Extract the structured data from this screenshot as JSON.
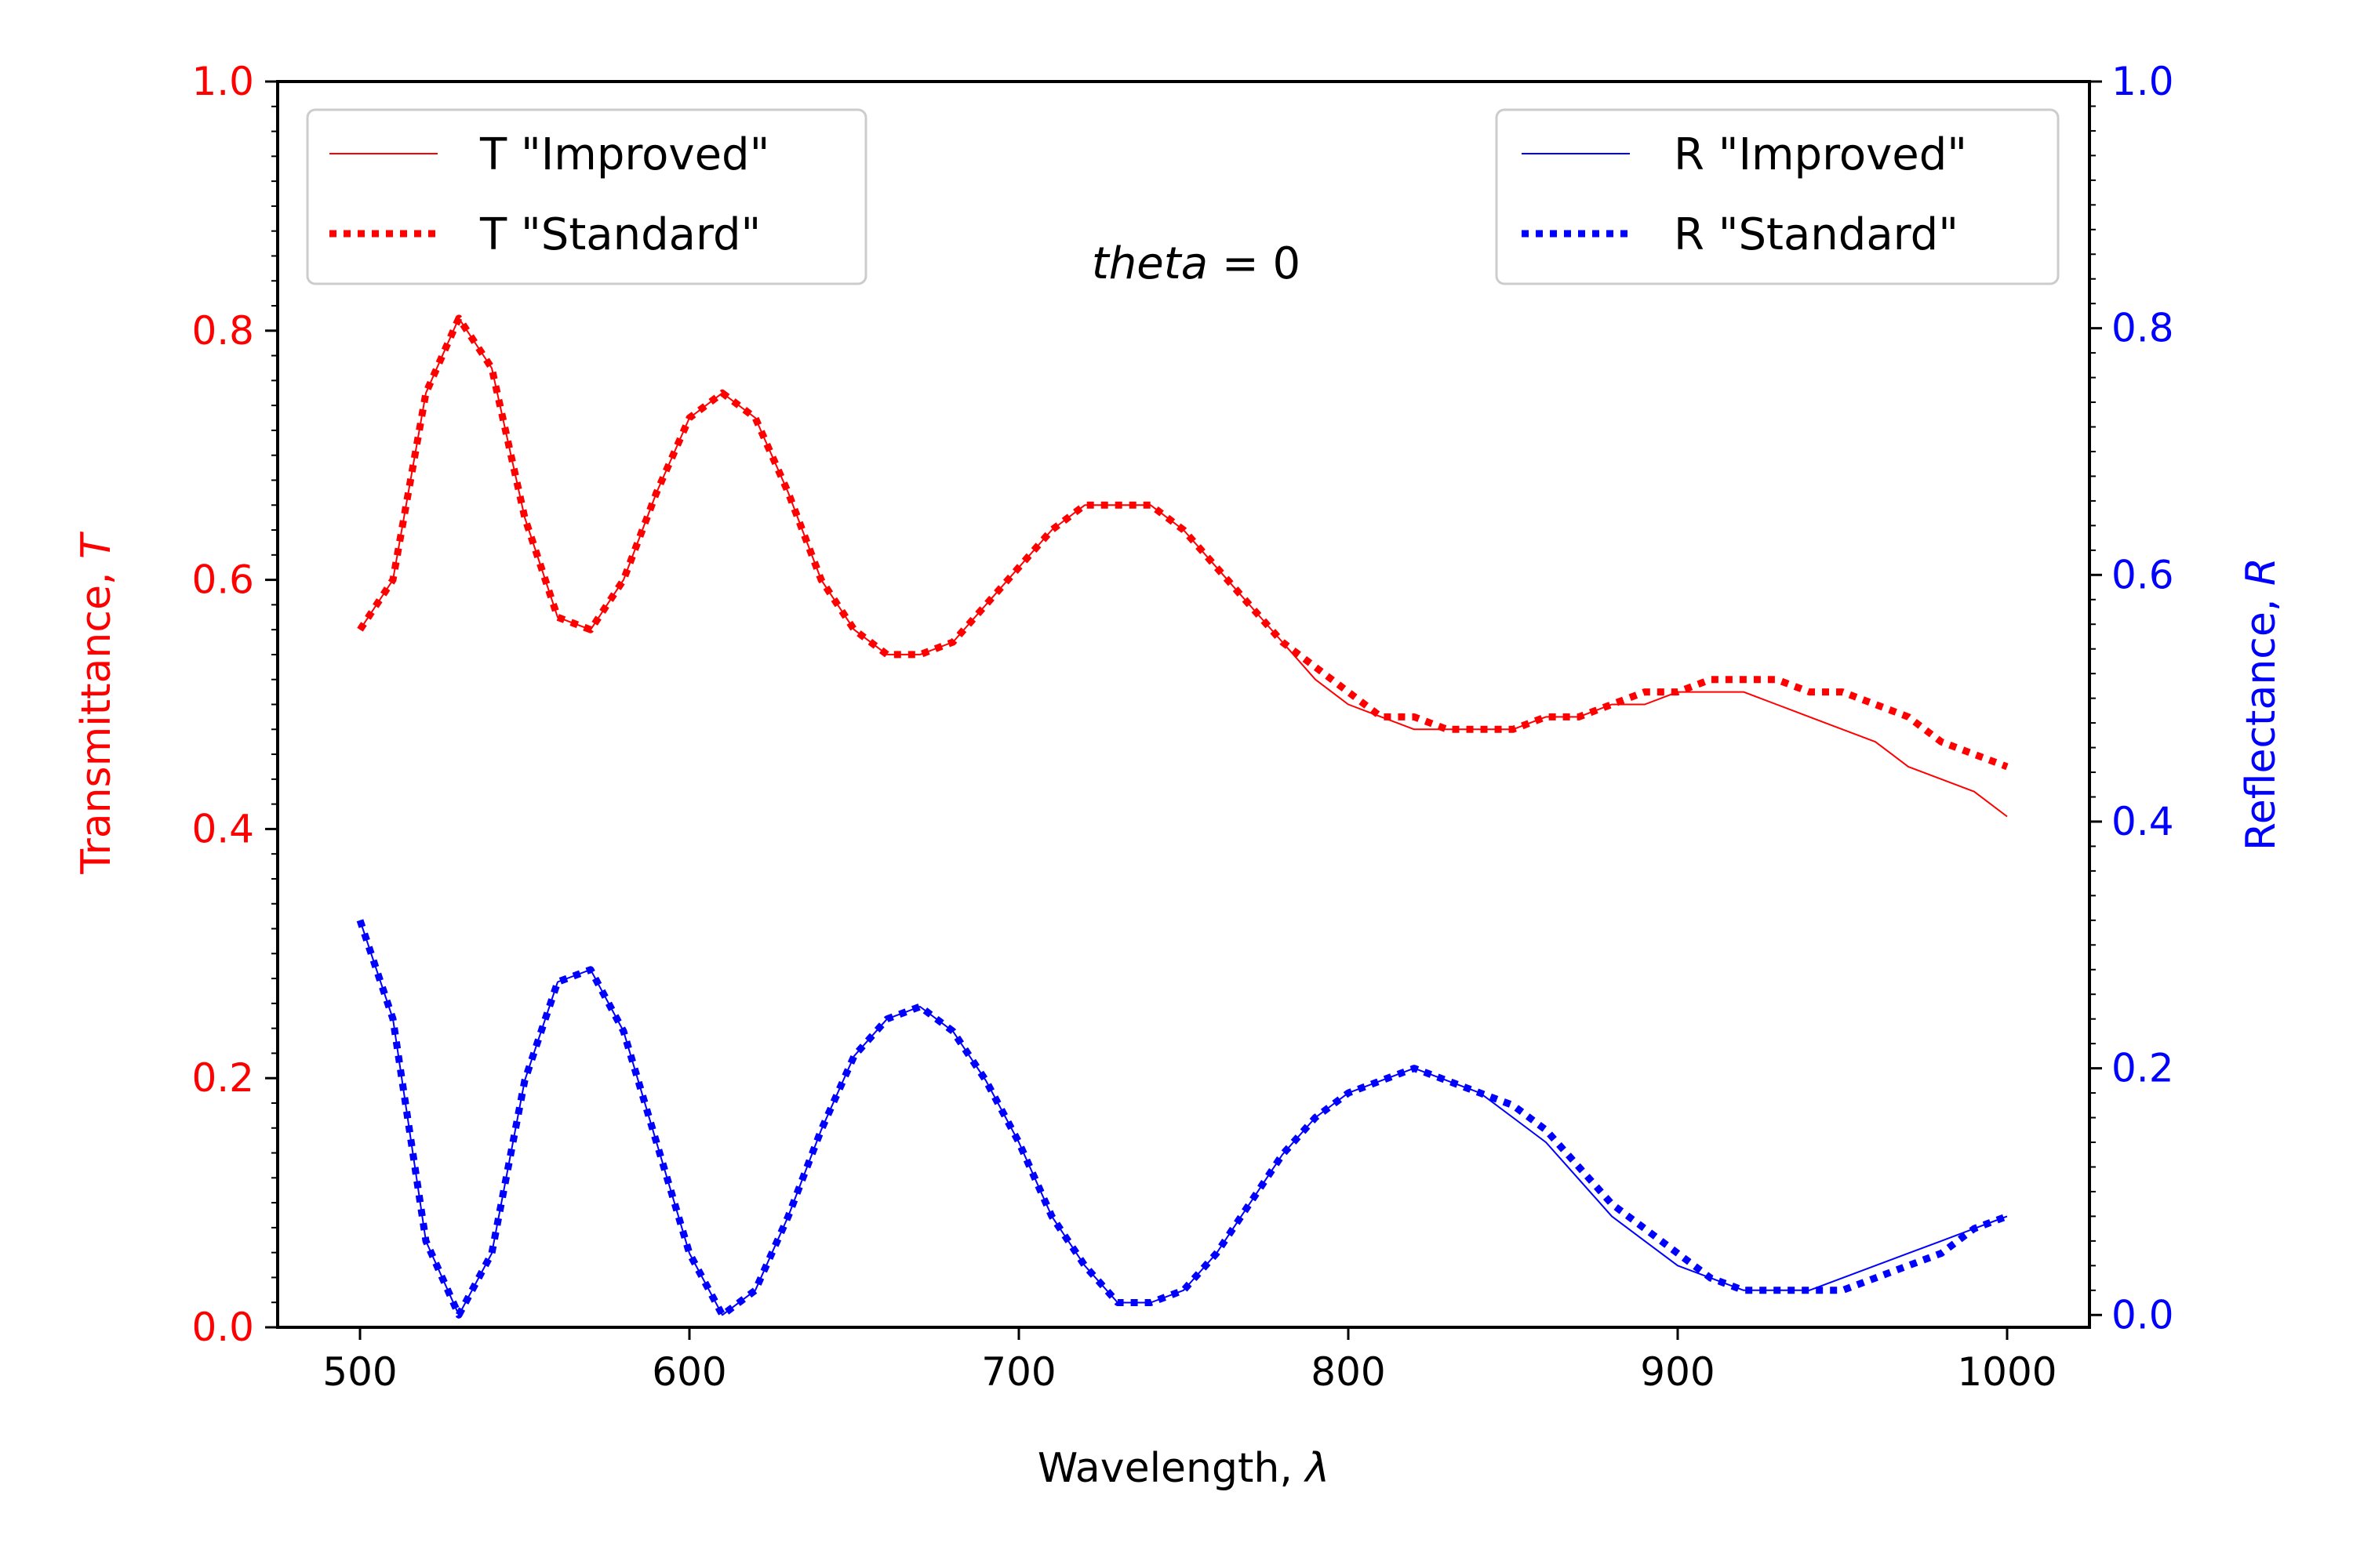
{
  "chart_data": {
    "type": "line",
    "annotation_var": "theta",
    "annotation_rest": " = 0",
    "xlabel_text": "Wavelength, ",
    "xlabel_sym": "λ",
    "ylabel_left_text": "Transmittance, ",
    "ylabel_left_sym": "T",
    "ylabel_right_text": "Reflectance, ",
    "ylabel_right_sym": "R",
    "xlim": [
      475,
      1025
    ],
    "ylim_left": [
      0.0,
      1.0
    ],
    "ylim_right": [
      -0.01,
      1.0
    ],
    "x_ticks": [
      500,
      600,
      700,
      800,
      900,
      1000
    ],
    "x_tick_labels": [
      "500",
      "600",
      "700",
      "800",
      "900",
      "1000"
    ],
    "y_left_ticks": [
      0.0,
      0.2,
      0.4,
      0.6,
      0.8,
      1.0
    ],
    "y_left_tick_labels": [
      "0.0",
      "0.2",
      "0.4",
      "0.6",
      "0.8",
      "1.0"
    ],
    "y_right_ticks": [
      0.0,
      0.2,
      0.4,
      0.6,
      0.8,
      1.0
    ],
    "y_right_tick_labels": [
      "0.0",
      "0.2",
      "0.4",
      "0.6",
      "0.8",
      "1.0"
    ],
    "grid": false,
    "legends": [
      {
        "placement": "top-left",
        "entries": [
          "T \"Improved\"",
          "T \"Standard\""
        ]
      },
      {
        "placement": "top-right",
        "entries": [
          "R \"Improved\"",
          "R \"Standard\""
        ]
      }
    ],
    "colors": {
      "left_axis": "#ff0000",
      "right_axis": "#0000ff",
      "frame": "#000000"
    },
    "series": [
      {
        "name": "T \"Improved\"",
        "axis": "left",
        "color": "#ff0000",
        "style": "solid",
        "points": [
          [
            500,
            0.56
          ],
          [
            510,
            0.6
          ],
          [
            520,
            0.75
          ],
          [
            530,
            0.81
          ],
          [
            540,
            0.77
          ],
          [
            550,
            0.65
          ],
          [
            560,
            0.57
          ],
          [
            570,
            0.56
          ],
          [
            580,
            0.6
          ],
          [
            590,
            0.67
          ],
          [
            600,
            0.73
          ],
          [
            610,
            0.75
          ],
          [
            620,
            0.73
          ],
          [
            630,
            0.67
          ],
          [
            640,
            0.6
          ],
          [
            650,
            0.56
          ],
          [
            660,
            0.54
          ],
          [
            670,
            0.54
          ],
          [
            680,
            0.55
          ],
          [
            690,
            0.58
          ],
          [
            700,
            0.61
          ],
          [
            710,
            0.64
          ],
          [
            720,
            0.66
          ],
          [
            730,
            0.66
          ],
          [
            740,
            0.66
          ],
          [
            750,
            0.64
          ],
          [
            760,
            0.61
          ],
          [
            770,
            0.58
          ],
          [
            780,
            0.55
          ],
          [
            790,
            0.52
          ],
          [
            800,
            0.5
          ],
          [
            810,
            0.49
          ],
          [
            820,
            0.48
          ],
          [
            830,
            0.48
          ],
          [
            840,
            0.48
          ],
          [
            850,
            0.48
          ],
          [
            860,
            0.49
          ],
          [
            870,
            0.49
          ],
          [
            880,
            0.5
          ],
          [
            890,
            0.5
          ],
          [
            900,
            0.51
          ],
          [
            910,
            0.51
          ],
          [
            920,
            0.51
          ],
          [
            930,
            0.5
          ],
          [
            940,
            0.49
          ],
          [
            950,
            0.48
          ],
          [
            960,
            0.47
          ],
          [
            970,
            0.45
          ],
          [
            980,
            0.44
          ],
          [
            990,
            0.43
          ],
          [
            1000,
            0.41
          ]
        ]
      },
      {
        "name": "T \"Standard\"",
        "axis": "left",
        "color": "#ff0000",
        "style": "dotted",
        "points": [
          [
            500,
            0.56
          ],
          [
            510,
            0.6
          ],
          [
            520,
            0.75
          ],
          [
            530,
            0.81
          ],
          [
            540,
            0.77
          ],
          [
            550,
            0.65
          ],
          [
            560,
            0.57
          ],
          [
            570,
            0.56
          ],
          [
            580,
            0.6
          ],
          [
            590,
            0.67
          ],
          [
            600,
            0.73
          ],
          [
            610,
            0.75
          ],
          [
            620,
            0.73
          ],
          [
            630,
            0.67
          ],
          [
            640,
            0.6
          ],
          [
            650,
            0.56
          ],
          [
            660,
            0.54
          ],
          [
            670,
            0.54
          ],
          [
            680,
            0.55
          ],
          [
            690,
            0.58
          ],
          [
            700,
            0.61
          ],
          [
            710,
            0.64
          ],
          [
            720,
            0.66
          ],
          [
            730,
            0.66
          ],
          [
            740,
            0.66
          ],
          [
            750,
            0.64
          ],
          [
            760,
            0.61
          ],
          [
            770,
            0.58
          ],
          [
            780,
            0.55
          ],
          [
            790,
            0.53
          ],
          [
            800,
            0.51
          ],
          [
            810,
            0.49
          ],
          [
            820,
            0.49
          ],
          [
            830,
            0.48
          ],
          [
            840,
            0.48
          ],
          [
            850,
            0.48
          ],
          [
            860,
            0.49
          ],
          [
            870,
            0.49
          ],
          [
            880,
            0.5
          ],
          [
            890,
            0.51
          ],
          [
            900,
            0.51
          ],
          [
            910,
            0.52
          ],
          [
            920,
            0.52
          ],
          [
            930,
            0.52
          ],
          [
            940,
            0.51
          ],
          [
            950,
            0.51
          ],
          [
            960,
            0.5
          ],
          [
            970,
            0.49
          ],
          [
            980,
            0.47
          ],
          [
            990,
            0.46
          ],
          [
            1000,
            0.45
          ]
        ]
      },
      {
        "name": "R \"Improved\"",
        "axis": "right",
        "color": "#0000ff",
        "style": "solid",
        "points": [
          [
            500,
            0.32
          ],
          [
            510,
            0.24
          ],
          [
            520,
            0.06
          ],
          [
            530,
            0.0
          ],
          [
            540,
            0.05
          ],
          [
            550,
            0.19
          ],
          [
            560,
            0.27
          ],
          [
            570,
            0.28
          ],
          [
            580,
            0.23
          ],
          [
            590,
            0.14
          ],
          [
            600,
            0.05
          ],
          [
            610,
            0.0
          ],
          [
            620,
            0.02
          ],
          [
            630,
            0.08
          ],
          [
            640,
            0.15
          ],
          [
            650,
            0.21
          ],
          [
            660,
            0.24
          ],
          [
            670,
            0.25
          ],
          [
            680,
            0.23
          ],
          [
            690,
            0.19
          ],
          [
            700,
            0.14
          ],
          [
            710,
            0.08
          ],
          [
            720,
            0.04
          ],
          [
            730,
            0.01
          ],
          [
            740,
            0.01
          ],
          [
            750,
            0.02
          ],
          [
            760,
            0.05
          ],
          [
            770,
            0.09
          ],
          [
            780,
            0.13
          ],
          [
            790,
            0.16
          ],
          [
            800,
            0.18
          ],
          [
            810,
            0.19
          ],
          [
            820,
            0.2
          ],
          [
            830,
            0.19
          ],
          [
            840,
            0.18
          ],
          [
            850,
            0.16
          ],
          [
            860,
            0.14
          ],
          [
            870,
            0.11
          ],
          [
            880,
            0.08
          ],
          [
            890,
            0.06
          ],
          [
            900,
            0.04
          ],
          [
            910,
            0.03
          ],
          [
            920,
            0.02
          ],
          [
            930,
            0.02
          ],
          [
            940,
            0.02
          ],
          [
            950,
            0.03
          ],
          [
            960,
            0.04
          ],
          [
            970,
            0.05
          ],
          [
            980,
            0.06
          ],
          [
            990,
            0.07
          ],
          [
            1000,
            0.08
          ]
        ]
      },
      {
        "name": "R \"Standard\"",
        "axis": "right",
        "color": "#0000ff",
        "style": "dotted",
        "points": [
          [
            500,
            0.32
          ],
          [
            510,
            0.24
          ],
          [
            520,
            0.06
          ],
          [
            530,
            0.0
          ],
          [
            540,
            0.05
          ],
          [
            550,
            0.19
          ],
          [
            560,
            0.27
          ],
          [
            570,
            0.28
          ],
          [
            580,
            0.23
          ],
          [
            590,
            0.14
          ],
          [
            600,
            0.05
          ],
          [
            610,
            0.0
          ],
          [
            620,
            0.02
          ],
          [
            630,
            0.08
          ],
          [
            640,
            0.15
          ],
          [
            650,
            0.21
          ],
          [
            660,
            0.24
          ],
          [
            670,
            0.25
          ],
          [
            680,
            0.23
          ],
          [
            690,
            0.19
          ],
          [
            700,
            0.14
          ],
          [
            710,
            0.08
          ],
          [
            720,
            0.04
          ],
          [
            730,
            0.01
          ],
          [
            740,
            0.01
          ],
          [
            750,
            0.02
          ],
          [
            760,
            0.05
          ],
          [
            770,
            0.09
          ],
          [
            780,
            0.13
          ],
          [
            790,
            0.16
          ],
          [
            800,
            0.18
          ],
          [
            810,
            0.19
          ],
          [
            820,
            0.2
          ],
          [
            830,
            0.19
          ],
          [
            840,
            0.18
          ],
          [
            850,
            0.17
          ],
          [
            860,
            0.15
          ],
          [
            870,
            0.12
          ],
          [
            880,
            0.09
          ],
          [
            890,
            0.07
          ],
          [
            900,
            0.05
          ],
          [
            910,
            0.03
          ],
          [
            920,
            0.02
          ],
          [
            930,
            0.02
          ],
          [
            940,
            0.02
          ],
          [
            950,
            0.02
          ],
          [
            960,
            0.03
          ],
          [
            970,
            0.04
          ],
          [
            980,
            0.05
          ],
          [
            990,
            0.07
          ],
          [
            1000,
            0.08
          ]
        ]
      }
    ]
  }
}
